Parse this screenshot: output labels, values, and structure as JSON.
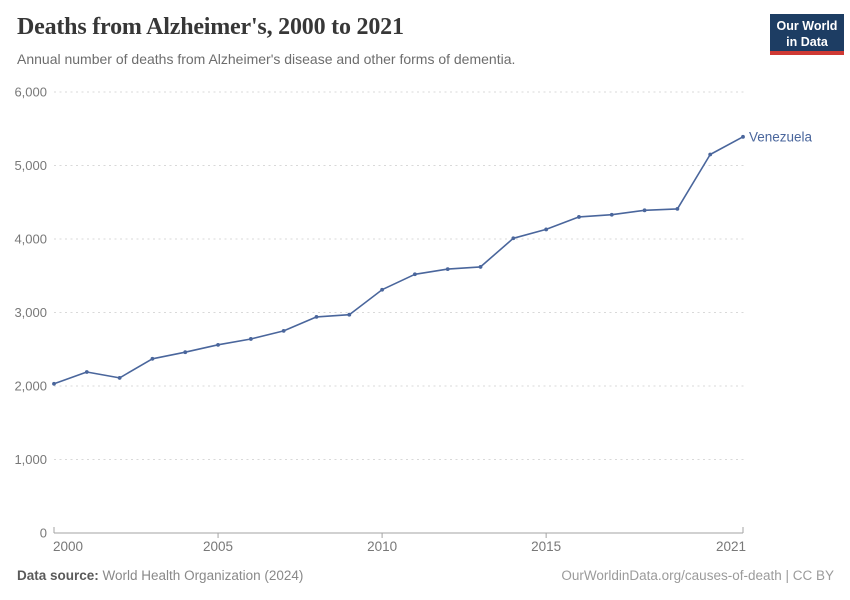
{
  "header": {
    "title": "Deaths from Alzheimer's, 2000 to 2021",
    "subtitle": "Annual number of deaths from Alzheimer's disease and other forms of dementia.",
    "logo": {
      "line1": "Our World",
      "line2": "in Data"
    }
  },
  "chart_data": {
    "type": "line",
    "title": "Deaths from Alzheimer's, 2000 to 2021",
    "subtitle": "Annual number of deaths from Alzheimer's disease and other forms of dementia.",
    "x": [
      2000,
      2001,
      2002,
      2003,
      2004,
      2005,
      2006,
      2007,
      2008,
      2009,
      2010,
      2011,
      2012,
      2013,
      2014,
      2015,
      2016,
      2017,
      2018,
      2019,
      2020,
      2021
    ],
    "series": [
      {
        "name": "Venezuela",
        "color": "#4a669c",
        "values": [
          2030,
          2190,
          2110,
          2370,
          2460,
          2560,
          2640,
          2750,
          2940,
          2970,
          3310,
          3520,
          3590,
          3620,
          4010,
          4130,
          4300,
          4330,
          4390,
          4410,
          5150,
          5390
        ]
      }
    ],
    "xticks": [
      2000,
      2005,
      2010,
      2015,
      2021
    ],
    "yticks": [
      0,
      1000,
      2000,
      3000,
      4000,
      5000,
      6000
    ],
    "xlim": [
      2000,
      2021
    ],
    "ylim": [
      0,
      6000
    ],
    "grid": "horizontal-dashed",
    "legend_position": "line-end-label"
  },
  "colors": {
    "line": "#4a669c",
    "grid": "#d9d9d9",
    "axis": "#a3a3a3",
    "tick_label": "#787878",
    "title": "#373737",
    "subtitle": "#6d6d6d",
    "logo_bg": "#1d3d63",
    "logo_stripe": "#cf3934"
  },
  "footer": {
    "source_label": "Data source:",
    "source_value": " World Health Organization (2024)",
    "credit": "OurWorldinData.org/causes-of-death | CC BY"
  }
}
